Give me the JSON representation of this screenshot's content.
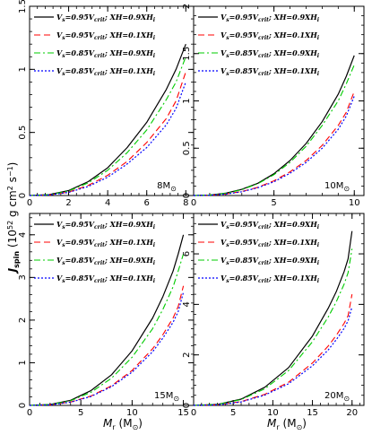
{
  "figure": {
    "ylabel_main": "J",
    "ylabel_sub": "spin",
    "ylabel_units": "(10",
    "ylabel_exp": "52",
    "ylabel_units2": " g cm",
    "ylabel_exp2": "2",
    "ylabel_units3": " s",
    "ylabel_exp3": "−1",
    "ylabel_close": ")",
    "xlabel_main": "M",
    "xlabel_sub": "r",
    "xlabel_units": " (M",
    "xlabel_sun": "⊙",
    "xlabel_close": ")"
  },
  "colors": {
    "s1": "#000000",
    "s2": "#ff0000",
    "s3": "#00cc00",
    "s4": "#0000ff"
  },
  "chart_data": [
    {
      "type": "line",
      "panel_label": "8M",
      "panel_label_sun": "⊙",
      "xlabel": "",
      "ylabel": "",
      "xlim": [
        0,
        8.4
      ],
      "ylim": [
        0,
        1.5
      ],
      "xticks": [
        0,
        2,
        4,
        6,
        8
      ],
      "yticks": [
        0,
        0.5,
        1,
        1.5
      ],
      "xtick_labels": [
        "0",
        "2",
        "4",
        "6",
        "8"
      ],
      "ytick_labels": [
        "0",
        "0.5",
        "1",
        "1.5"
      ],
      "legend": [
        "Vₛ=0.95Vₒᵣₜᵢₜ; XH=0.9XHᵢ",
        "",
        "",
        ""
      ],
      "series": [
        {
          "name": "V=0.95Vcrit; XH=0.9XH",
          "x": [
            0,
            1,
            2,
            3,
            4,
            5,
            6,
            7,
            7.5,
            8
          ],
          "y": [
            0,
            0.007,
            0.04,
            0.11,
            0.22,
            0.38,
            0.58,
            0.84,
            1.0,
            1.2
          ]
        },
        {
          "name": "V=0.95Vcrit; XH=0.1XH",
          "x": [
            0,
            1,
            2,
            3,
            4,
            5,
            6,
            7,
            7.5,
            8
          ],
          "y": [
            0,
            0.005,
            0.028,
            0.08,
            0.16,
            0.27,
            0.42,
            0.61,
            0.75,
            0.98
          ]
        },
        {
          "name": "V=0.85Vcrit; XH=0.9XH",
          "x": [
            0,
            1,
            2,
            3,
            4,
            5,
            6,
            7,
            7.5,
            8
          ],
          "y": [
            0,
            0.006,
            0.036,
            0.1,
            0.2,
            0.34,
            0.52,
            0.76,
            0.9,
            1.1
          ]
        },
        {
          "name": "V=0.85Vcrit; XH=0.1XH",
          "x": [
            0,
            1,
            2,
            3,
            4,
            5,
            6,
            7,
            7.5,
            8
          ],
          "y": [
            0,
            0.004,
            0.025,
            0.072,
            0.145,
            0.25,
            0.38,
            0.56,
            0.69,
            0.9
          ]
        }
      ]
    },
    {
      "type": "line",
      "panel_label": "10M",
      "panel_label_sun": "⊙",
      "xlabel": "",
      "ylabel": "",
      "xlim": [
        0,
        10.6
      ],
      "ylim": [
        0,
        2
      ],
      "xticks": [
        0,
        5,
        10
      ],
      "yticks": [
        0,
        0.5,
        1,
        1.5,
        2
      ],
      "xtick_labels": [
        "0",
        "5",
        "10"
      ],
      "ytick_labels": [
        "0",
        "0.5",
        "1",
        "1.5",
        "2"
      ],
      "series": [
        {
          "name": "V=0.95Vcrit; XH=0.9XH",
          "x": [
            0,
            1,
            2,
            3,
            4,
            5,
            6,
            7,
            8,
            9,
            9.5,
            10
          ],
          "y": [
            0,
            0.005,
            0.025,
            0.065,
            0.13,
            0.23,
            0.37,
            0.55,
            0.78,
            1.07,
            1.26,
            1.48
          ]
        },
        {
          "name": "V=0.95Vcrit; XH=0.1XH",
          "x": [
            0,
            1,
            2,
            3,
            4,
            5,
            6,
            7,
            8,
            9,
            9.5,
            10
          ],
          "y": [
            0,
            0.003,
            0.016,
            0.043,
            0.087,
            0.155,
            0.25,
            0.37,
            0.53,
            0.74,
            0.88,
            1.1
          ]
        },
        {
          "name": "V=0.85Vcrit; XH=0.9XH",
          "x": [
            0,
            1,
            2,
            3,
            4,
            5,
            6,
            7,
            8,
            9,
            9.5,
            10
          ],
          "y": [
            0,
            0.005,
            0.024,
            0.062,
            0.125,
            0.22,
            0.35,
            0.52,
            0.74,
            1.0,
            1.18,
            1.38
          ]
        },
        {
          "name": "V=0.85Vcrit; XH=0.1XH",
          "x": [
            0,
            1,
            2,
            3,
            4,
            5,
            6,
            7,
            8,
            9,
            9.5,
            10
          ],
          "y": [
            0,
            0.003,
            0.015,
            0.04,
            0.082,
            0.145,
            0.235,
            0.35,
            0.5,
            0.7,
            0.84,
            1.05
          ]
        }
      ]
    },
    {
      "type": "line",
      "panel_label": "15M",
      "panel_label_sun": "⊙",
      "xlabel": "",
      "ylabel": "",
      "xlim": [
        0,
        16
      ],
      "ylim": [
        0,
        4.5
      ],
      "xticks": [
        0,
        5,
        10,
        15
      ],
      "yticks": [
        0,
        1,
        2,
        3,
        4
      ],
      "xtick_labels": [
        "0",
        "5",
        "10",
        "15"
      ],
      "ytick_labels": [
        "0",
        "1",
        "2",
        "3",
        "4"
      ],
      "series": [
        {
          "name": "V=0.95Vcrit; XH=0.9XH",
          "x": [
            0,
            2,
            4,
            6,
            8,
            10,
            12,
            13,
            14,
            14.5,
            15
          ],
          "y": [
            0,
            0.02,
            0.12,
            0.35,
            0.72,
            1.28,
            2.05,
            2.55,
            3.15,
            3.55,
            4.0
          ]
        },
        {
          "name": "V=0.95Vcrit; XH=0.1XH",
          "x": [
            0,
            2,
            4,
            6,
            8,
            10,
            12,
            13,
            14,
            14.5,
            15
          ],
          "y": [
            0,
            0.014,
            0.08,
            0.22,
            0.46,
            0.82,
            1.33,
            1.66,
            2.05,
            2.32,
            2.8
          ]
        },
        {
          "name": "V=0.85Vcrit; XH=0.9XH",
          "x": [
            0,
            2,
            4,
            6,
            8,
            10,
            12,
            13,
            14,
            14.5,
            15
          ],
          "y": [
            0,
            0.018,
            0.11,
            0.31,
            0.64,
            1.13,
            1.8,
            2.25,
            2.78,
            3.15,
            3.55
          ]
        },
        {
          "name": "V=0.85Vcrit; XH=0.1XH",
          "x": [
            0,
            2,
            4,
            6,
            8,
            10,
            12,
            13,
            14,
            14.5,
            15
          ],
          "y": [
            0,
            0.012,
            0.075,
            0.21,
            0.44,
            0.78,
            1.26,
            1.58,
            1.95,
            2.2,
            2.65
          ]
        }
      ]
    },
    {
      "type": "line",
      "panel_label": "20M",
      "panel_label_sun": "⊙",
      "xlabel": "",
      "ylabel": "",
      "xlim": [
        0,
        21.5
      ],
      "ylim": [
        0,
        7.6
      ],
      "xticks": [
        0,
        5,
        10,
        15,
        20
      ],
      "yticks": [
        0,
        2,
        4,
        6
      ],
      "xtick_labels": [
        "0",
        "5",
        "10",
        "15",
        "20"
      ],
      "ytick_labels": [
        "0",
        "2",
        "4",
        "6"
      ],
      "series": [
        {
          "name": "V=0.95Vcrit; XH=0.9XH",
          "x": [
            0,
            3,
            6,
            9,
            12,
            15,
            17,
            18,
            19,
            19.5,
            20
          ],
          "y": [
            0,
            0.04,
            0.25,
            0.72,
            1.5,
            2.75,
            3.85,
            4.5,
            5.3,
            5.8,
            6.9
          ]
        },
        {
          "name": "V=0.95Vcrit; XH=0.1XH",
          "x": [
            0,
            3,
            6,
            9,
            12,
            15,
            17,
            18,
            19,
            19.5,
            20
          ],
          "y": [
            0,
            0.025,
            0.15,
            0.44,
            0.92,
            1.68,
            2.35,
            2.77,
            3.25,
            3.55,
            4.4
          ]
        },
        {
          "name": "V=0.85Vcrit; XH=0.9XH",
          "x": [
            0,
            3,
            6,
            9,
            12,
            15,
            17,
            18,
            19,
            19.5,
            20
          ],
          "y": [
            0,
            0.036,
            0.23,
            0.66,
            1.38,
            2.52,
            3.5,
            4.1,
            4.8,
            5.25,
            6.2
          ]
        },
        {
          "name": "V=0.85Vcrit; XH=0.1XH",
          "x": [
            0,
            3,
            6,
            9,
            12,
            15,
            17,
            18,
            19,
            19.5,
            20
          ],
          "y": [
            0,
            0.022,
            0.14,
            0.41,
            0.86,
            1.57,
            2.2,
            2.6,
            3.05,
            3.35,
            3.9
          ]
        }
      ]
    }
  ],
  "legend": [
    {
      "pre": "V",
      "sub1": "s",
      "mid": "=0.95V",
      "sub2": "crit",
      "post": "; XH=0.9XH",
      "sub3": "i"
    },
    {
      "pre": "V",
      "sub1": "s",
      "mid": "=0.95V",
      "sub2": "crit",
      "post": "; XH=0.1XH",
      "sub3": "i"
    },
    {
      "pre": "V",
      "sub1": "s",
      "mid": "=0.85V",
      "sub2": "crit",
      "post": "; XH=0.9XH",
      "sub3": "i"
    },
    {
      "pre": "V",
      "sub1": "s",
      "mid": "=0.85V",
      "sub2": "crit",
      "post": "; XH=0.1XH",
      "sub3": "i"
    }
  ]
}
